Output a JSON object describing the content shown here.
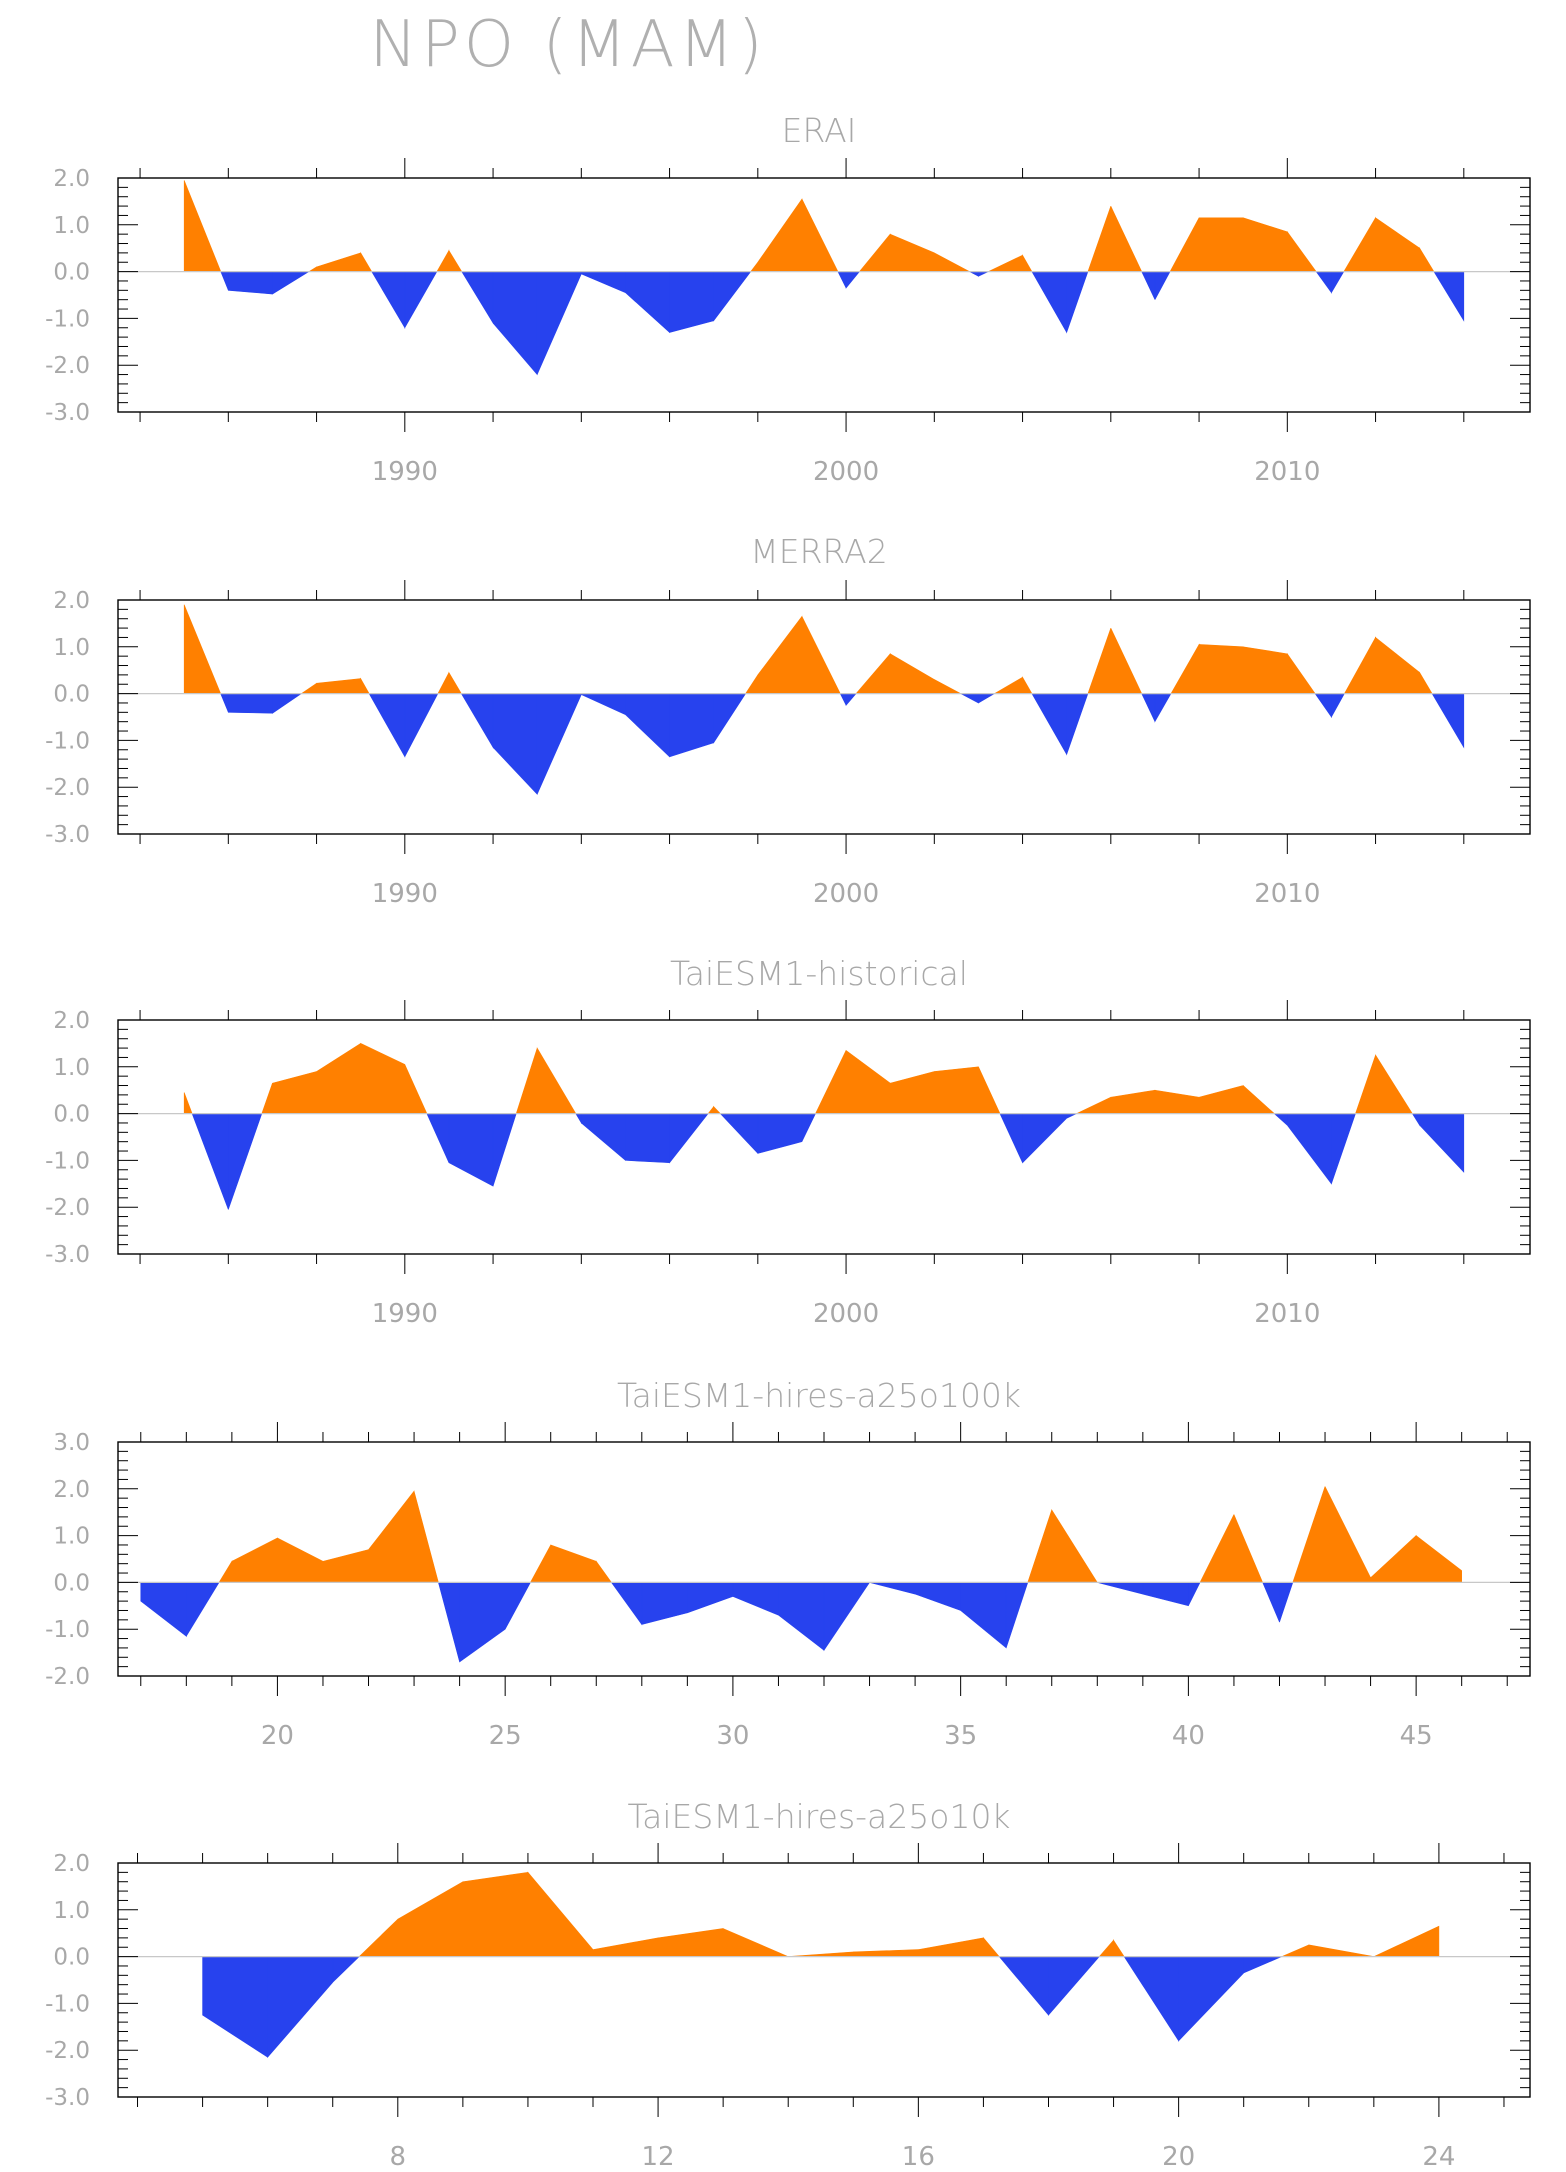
{
  "title": "NPO (MAM)",
  "colors": {
    "positive": "#ff8000",
    "negative": "#2742ee",
    "frame": "#000000",
    "zero_line": "#c8c8c8",
    "text": "#a8a8a8"
  },
  "chart_data": [
    {
      "type": "area",
      "title": "ERAI",
      "ylim": [
        -3.0,
        2.0
      ],
      "yticks": [
        "2.0",
        "1.0",
        "0.0",
        "-1.0",
        "-2.0",
        "-3.0"
      ],
      "xlim": [
        1983.5,
        2015.5
      ],
      "xticks": [
        1990,
        2000,
        2010
      ],
      "x": [
        1985,
        1986,
        1987,
        1988,
        1989,
        1990,
        1991,
        1992,
        1993,
        1994,
        1995,
        1996,
        1997,
        1998,
        1999,
        2000,
        2001,
        2002,
        2003,
        2004,
        2005,
        2006,
        2007,
        2008,
        2009,
        2010,
        2011,
        2012,
        2013,
        2014
      ],
      "values": [
        1.95,
        -0.4,
        -0.48,
        0.1,
        0.4,
        -1.2,
        0.45,
        -1.1,
        -2.2,
        -0.05,
        -0.45,
        -1.3,
        -1.05,
        0.2,
        1.55,
        -0.35,
        0.8,
        0.4,
        -0.1,
        0.35,
        -1.3,
        1.4,
        -0.6,
        1.15,
        1.15,
        0.85,
        -0.45,
        1.15,
        0.5,
        -1.05
      ]
    },
    {
      "type": "area",
      "title": "MERRA2",
      "ylim": [
        -3.0,
        2.0
      ],
      "yticks": [
        "2.0",
        "1.0",
        "0.0",
        "-1.0",
        "-2.0",
        "-3.0"
      ],
      "xlim": [
        1983.5,
        2015.5
      ],
      "xticks": [
        1990,
        2000,
        2010
      ],
      "x": [
        1985,
        1986,
        1987,
        1988,
        1989,
        1990,
        1991,
        1992,
        1993,
        1994,
        1995,
        1996,
        1997,
        1998,
        1999,
        2000,
        2001,
        2002,
        2003,
        2004,
        2005,
        2006,
        2007,
        2008,
        2009,
        2010,
        2011,
        2012,
        2013,
        2014
      ],
      "values": [
        1.9,
        -0.4,
        -0.42,
        0.22,
        0.32,
        -1.35,
        0.45,
        -1.15,
        -2.15,
        -0.02,
        -0.45,
        -1.35,
        -1.05,
        0.4,
        1.65,
        -0.25,
        0.85,
        0.3,
        -0.2,
        0.35,
        -1.3,
        1.4,
        -0.6,
        1.05,
        1.0,
        0.85,
        -0.5,
        1.2,
        0.45,
        -1.15
      ]
    },
    {
      "type": "area",
      "title": "TaiESM1-historical",
      "ylim": [
        -3.0,
        2.0
      ],
      "yticks": [
        "2.0",
        "1.0",
        "0.0",
        "-1.0",
        "-2.0",
        "-3.0"
      ],
      "xlim": [
        1983.5,
        2015.5
      ],
      "xticks": [
        1990,
        2000,
        2010
      ],
      "x": [
        1985,
        1986,
        1987,
        1988,
        1989,
        1990,
        1991,
        1992,
        1993,
        1994,
        1995,
        1996,
        1997,
        1998,
        1999,
        2000,
        2001,
        2002,
        2003,
        2004,
        2005,
        2006,
        2007,
        2008,
        2009,
        2010,
        2011,
        2012,
        2013,
        2014
      ],
      "values": [
        0.45,
        -2.05,
        0.65,
        0.9,
        1.5,
        1.05,
        -1.05,
        -1.55,
        1.4,
        -0.2,
        -1.0,
        -1.05,
        0.15,
        -0.85,
        -0.6,
        1.35,
        0.65,
        0.9,
        1.0,
        -1.05,
        -0.1,
        0.35,
        0.5,
        0.35,
        0.6,
        -0.25,
        -1.5,
        1.25,
        -0.25,
        -1.25
      ]
    },
    {
      "type": "area",
      "title": "TaiESM1-hires-a25o100k",
      "ylim": [
        -2.0,
        3.0
      ],
      "yticks": [
        "3.0",
        "2.0",
        "1.0",
        "0.0",
        "-1.0",
        "-2.0"
      ],
      "xlim": [
        16.5,
        47.5
      ],
      "xticks": [
        20,
        25,
        30,
        35,
        40,
        45
      ],
      "x": [
        17,
        18,
        19,
        20,
        21,
        22,
        23,
        24,
        25,
        26,
        27,
        28,
        29,
        30,
        31,
        32,
        33,
        34,
        35,
        36,
        37,
        38,
        39,
        40,
        41,
        42,
        43,
        44,
        45,
        46
      ],
      "values": [
        -0.4,
        -1.15,
        0.45,
        0.95,
        0.45,
        0.7,
        1.95,
        -1.7,
        -1.0,
        0.8,
        0.45,
        -0.9,
        -0.65,
        -0.3,
        -0.7,
        -1.45,
        0.0,
        -0.25,
        -0.6,
        -1.4,
        1.55,
        0.0,
        -0.25,
        -0.5,
        1.45,
        -0.85,
        2.05,
        0.1,
        1.0,
        0.25
      ]
    },
    {
      "type": "area",
      "title": "TaiESM1-hires-a25o10k",
      "ylim": [
        -3.0,
        2.0
      ],
      "yticks": [
        "2.0",
        "1.0",
        "0.0",
        "-1.0",
        "-2.0",
        "-3.0"
      ],
      "xlim": [
        3.7,
        25.4
      ],
      "xticks": [
        8,
        12,
        16,
        20,
        24
      ],
      "x": [
        5,
        6,
        7,
        8,
        9,
        10,
        11,
        12,
        13,
        14,
        15,
        16,
        17,
        18,
        19,
        20,
        21,
        22,
        23,
        24
      ],
      "values": [
        -1.25,
        -2.15,
        -0.55,
        0.8,
        1.6,
        1.8,
        0.15,
        0.4,
        0.6,
        0.0,
        0.1,
        0.15,
        0.4,
        -1.25,
        0.35,
        -1.8,
        -0.35,
        0.25,
        0.0,
        0.65
      ]
    }
  ]
}
